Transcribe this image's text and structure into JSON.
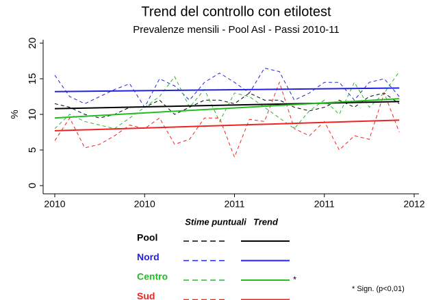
{
  "chart_data": {
    "type": "line",
    "title": "Trend del controllo con etilotest",
    "subtitle": "Prevalenze mensili - Pool Asl - Passi 2010-11",
    "y_label": "%",
    "x": [
      2010,
      2010.083,
      2010.167,
      2010.25,
      2010.333,
      2010.417,
      2010.5,
      2010.583,
      2010.667,
      2010.75,
      2010.833,
      2010.917,
      2011,
      2011.083,
      2011.167,
      2011.25,
      2011.333,
      2011.417,
      2011.5,
      2011.583,
      2011.667,
      2011.75,
      2011.833,
      2011.917
    ],
    "trend_x": [
      2010,
      2011.917
    ],
    "xlim": [
      2010,
      2012
    ],
    "xticks": [
      {
        "value": 2010,
        "label": "2010"
      },
      {
        "value": 2010.5,
        "label": "2010"
      },
      {
        "value": 2011,
        "label": "2011"
      },
      {
        "value": 2011.5,
        "label": "2011"
      },
      {
        "value": 2012,
        "label": "2012"
      }
    ],
    "ylim": [
      0,
      20
    ],
    "yticks": [
      0,
      5,
      10,
      15,
      20
    ],
    "legend_headers": [
      "Stime puntuali",
      "Trend"
    ],
    "note": "* Sign. (p<0,01)",
    "series": [
      {
        "name": "Pool",
        "color": "#000000",
        "values": [
          11.5,
          11,
          10,
          9.5,
          10,
          11,
          11,
          12,
          10,
          11,
          12,
          12,
          11.5,
          13,
          12,
          12,
          11,
          10.5,
          11,
          12,
          11,
          12.5,
          13,
          11.5
        ],
        "trend": [
          10.8,
          11.8
        ]
      },
      {
        "name": "Nord",
        "color": "#2222dd",
        "values": [
          15.5,
          12.5,
          11.5,
          12.5,
          13.5,
          14.3,
          11,
          15,
          14,
          12,
          14.5,
          15.8,
          14.5,
          13,
          16.5,
          16,
          12,
          13,
          14.5,
          14.5,
          12,
          14.5,
          15,
          12.5
        ],
        "trend": [
          13.2,
          13.7
        ]
      },
      {
        "name": "Centro",
        "color": "#22bb22",
        "values": [
          8,
          10,
          9,
          8.5,
          8,
          9.5,
          11,
          12.5,
          15.3,
          11,
          13.5,
          9,
          13,
          12.5,
          11,
          9.5,
          8,
          10.5,
          12,
          10,
          14.5,
          11,
          13,
          16
        ],
        "trend": [
          9.5,
          12.2
        ],
        "trend_mark": "*"
      },
      {
        "name": "Sud",
        "color": "#ee2222",
        "values": [
          6.3,
          9.5,
          5.3,
          5.8,
          7,
          8.5,
          8,
          9.5,
          5.8,
          6.5,
          9.5,
          9.5,
          4,
          9.3,
          9,
          14.5,
          8,
          7,
          9,
          5,
          7,
          6.5,
          13,
          7.5
        ],
        "trend": [
          7.7,
          9.2
        ]
      }
    ]
  }
}
